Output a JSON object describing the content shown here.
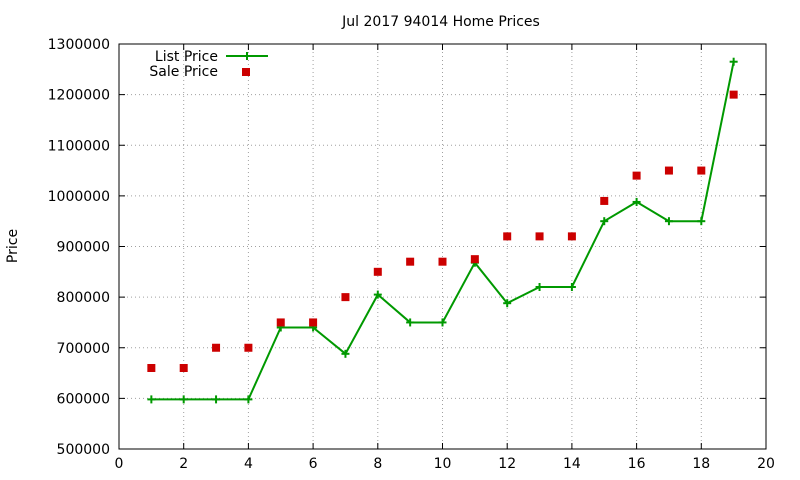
{
  "chart_data": {
    "type": "line",
    "title": "Jul 2017 94014 Home Prices",
    "xlabel": "",
    "ylabel": "Price",
    "xlim": [
      0,
      20
    ],
    "ylim": [
      500000,
      1300000
    ],
    "xticks": [
      "0",
      "2",
      "4",
      "6",
      "8",
      "10",
      "12",
      "14",
      "16",
      "18",
      "20"
    ],
    "yticks": [
      "500000",
      "600000",
      "700000",
      "800000",
      "900000",
      "1000000",
      "1100000",
      "1200000",
      "1300000"
    ],
    "grid": true,
    "legend_position": "top-left",
    "series": [
      {
        "name": "List Price",
        "style": "line+cross",
        "color": "#009900",
        "x": [
          1,
          2,
          3,
          4,
          5,
          6,
          7,
          8,
          9,
          10,
          11,
          12,
          13,
          14,
          15,
          16,
          17,
          18,
          19
        ],
        "values": [
          598000,
          598000,
          598000,
          598000,
          740000,
          740000,
          688000,
          805000,
          750000,
          750000,
          868000,
          788000,
          820000,
          820000,
          950000,
          988000,
          950000,
          950000,
          1265000
        ]
      },
      {
        "name": "Sale Price",
        "style": "square-points",
        "color": "#cc0000",
        "x": [
          1,
          2,
          3,
          4,
          5,
          6,
          7,
          8,
          9,
          10,
          11,
          12,
          13,
          14,
          15,
          16,
          17,
          18,
          19
        ],
        "values": [
          660000,
          660000,
          700000,
          700000,
          750000,
          750000,
          800000,
          850000,
          870000,
          870000,
          875000,
          920000,
          920000,
          920000,
          990000,
          1040000,
          1050000,
          1050000,
          1200000
        ]
      }
    ]
  }
}
